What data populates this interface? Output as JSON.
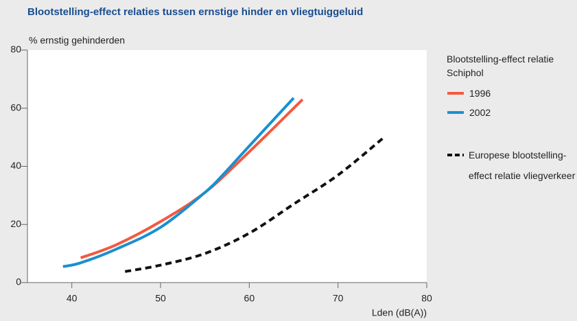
{
  "chart_data": {
    "type": "line",
    "title": "Blootstelling-effect relaties tussen ernstige hinder en vliegtuiggeluid",
    "y_label": "% ernstig gehinderden",
    "x_label": "Lden (dB(A))",
    "legend_title": "Blootstelling-effect relatie Schiphol",
    "xlim": [
      35,
      80
    ],
    "xticks": [
      40,
      50,
      60,
      70,
      80
    ],
    "ylim": [
      0,
      80
    ],
    "yticks": [
      0,
      20,
      40,
      60,
      80
    ],
    "series": [
      {
        "name": "1996",
        "color": "#f4593f",
        "x": [
          41,
          45,
          50,
          55,
          60,
          66
        ],
        "values": [
          8.5,
          13,
          21,
          31,
          45,
          63
        ]
      },
      {
        "name": "2002",
        "color": "#1a8fd1",
        "x": [
          39,
          41,
          45,
          50,
          55,
          57,
          60,
          65
        ],
        "values": [
          5.5,
          6.8,
          11.5,
          19,
          31,
          37,
          47,
          63.5
        ]
      },
      {
        "name": "Europese blootstelling-effect relatie vliegverkeer",
        "color": "#111111",
        "dashed": true,
        "x": [
          46,
          50,
          55,
          60,
          65,
          70,
          75
        ],
        "values": [
          3.8,
          6,
          10,
          17,
          27,
          37,
          49.5
        ]
      }
    ]
  }
}
